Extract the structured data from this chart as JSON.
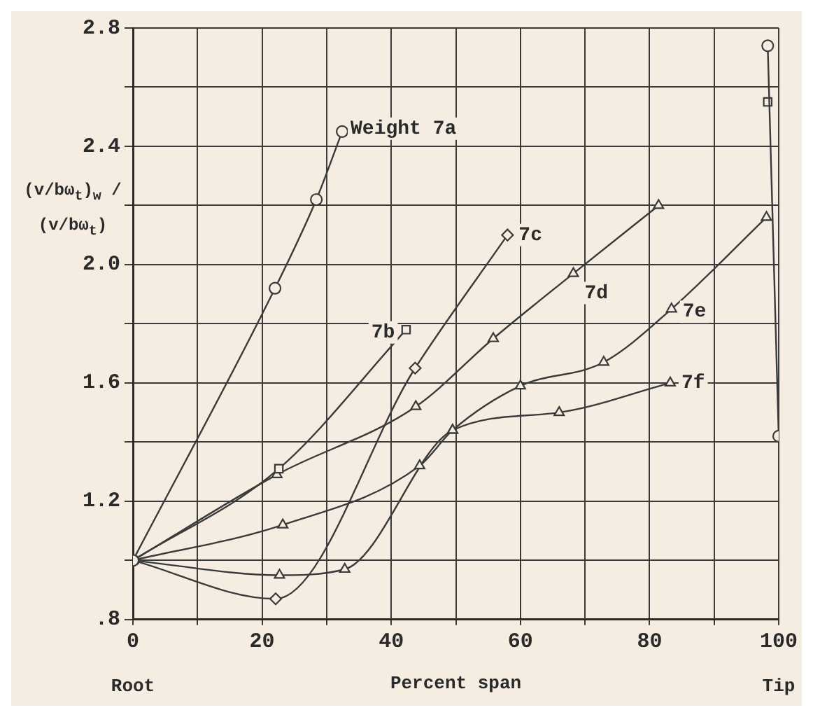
{
  "chart_data": {
    "type": "line",
    "xlabel": "Percent span",
    "ylabel": "(v/bω$_{t}$)$_{w}$ / (v/bω$_{t}$)",
    "annotations": [
      "Root",
      "Tip"
    ],
    "xlim": [
      0,
      100
    ],
    "xticks": [
      0,
      {
        "value": 10,
        "label": null
      },
      20,
      {
        "value": 30,
        "label": null
      },
      40,
      {
        "value": 50,
        "label": null
      },
      60,
      {
        "value": 70,
        "label": null
      },
      80,
      {
        "value": 90,
        "label": null
      },
      100
    ],
    "ylim": [
      0.8,
      2.8
    ],
    "yticks": [
      {
        "value": 0.8,
        "label": ".8"
      },
      {
        "value": 1.0,
        "label": null
      },
      1.2,
      {
        "value": 1.4,
        "label": null
      },
      1.6,
      {
        "value": 1.8,
        "label": null
      },
      {
        "value": 2.0,
        "label": "2.0"
      },
      {
        "value": 2.2,
        "label": null
      },
      2.4,
      {
        "value": 2.6,
        "label": null
      },
      2.8
    ],
    "grid": true,
    "legend": false,
    "series": [
      {
        "name": "Weight 7a",
        "color": "#3a3a3a",
        "marker": "circle",
        "x": [
          0,
          22,
          28.4,
          32.4
        ],
        "values": [
          1.0,
          1.92,
          2.22,
          2.45
        ]
      },
      {
        "name": "7b",
        "color": "#3a3a3a",
        "marker": "square",
        "x": [
          0,
          22.6,
          42.3
        ],
        "values": [
          1.0,
          1.31,
          1.78
        ]
      },
      {
        "name": "7c",
        "color": "#3a3a3a",
        "marker": "diamond",
        "x": [
          0,
          22.1,
          43.7,
          58
        ],
        "values": [
          1.0,
          0.87,
          1.65,
          2.1
        ]
      },
      {
        "name": "7d",
        "color": "#3a3a3a",
        "marker": "triangle",
        "x": [
          0,
          22.3,
          43.8,
          55.8,
          68.2,
          81.4
        ],
        "values": [
          1.0,
          1.29,
          1.52,
          1.75,
          1.97,
          2.2
        ]
      },
      {
        "name": "7e",
        "color": "#3a3a3a",
        "marker": "triangle",
        "x": [
          0,
          23.2,
          44.4,
          49.5,
          60,
          72.9,
          83.4,
          98.1
        ],
        "values": [
          1.0,
          1.12,
          1.32,
          1.44,
          1.59,
          1.67,
          1.85,
          2.16
        ]
      },
      {
        "name": "7f",
        "color": "#3a3a3a",
        "marker": "triangle",
        "x": [
          0,
          22.7,
          32.8,
          49.5,
          66,
          83.2
        ],
        "values": [
          1.0,
          0.95,
          0.97,
          1.44,
          1.5,
          1.6
        ]
      },
      {
        "color": "#3a3a3a",
        "marker": "circle",
        "x": [
          98.3,
          100
        ],
        "values": [
          2.74,
          1.42
        ]
      },
      {
        "type": "scatter",
        "color": "#3a3a3a",
        "marker": "square",
        "x": [
          98.3
        ],
        "values": [
          2.55
        ]
      }
    ]
  }
}
